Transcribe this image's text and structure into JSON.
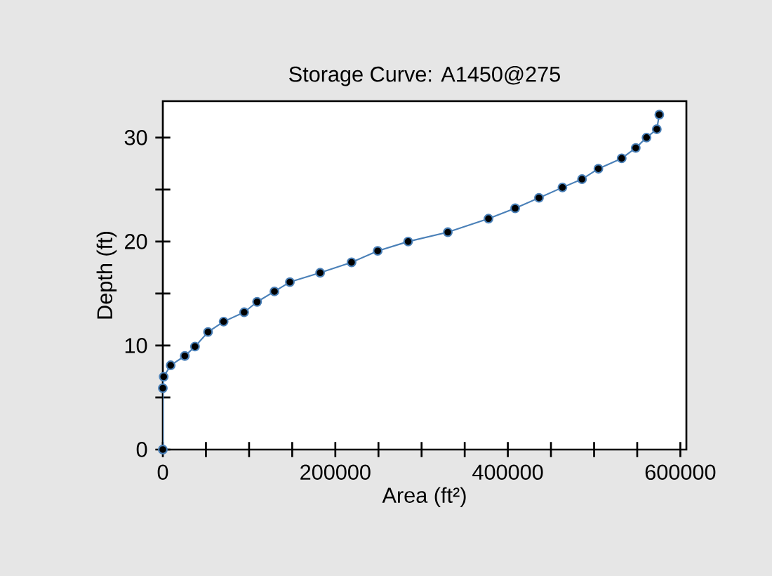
{
  "chart_data": {
    "type": "line",
    "title": "Storage Curve: A1450@275",
    "xlabel": "Area (ft²)",
    "ylabel": "Depth (ft)",
    "series": [
      {
        "color": "#4a80b8",
        "x": [
          0,
          0,
          1000,
          9100,
          25500,
          37300,
          52400,
          70500,
          94300,
          109300,
          129400,
          147300,
          182400,
          218800,
          249100,
          284400,
          330400,
          377600,
          408500,
          436100,
          463300,
          486000,
          505000,
          532000,
          548300,
          560800,
          572700,
          575600
        ],
        "values": [
          0,
          5.9,
          7.0,
          8.1,
          9.0,
          9.9,
          11.3,
          12.3,
          13.2,
          14.2,
          15.2,
          16.1,
          17.0,
          18.0,
          19.1,
          20.0,
          20.9,
          22.2,
          23.2,
          24.2,
          25.2,
          26.0,
          27.0,
          28.0,
          29.0,
          30.0,
          30.8,
          32.2
        ]
      }
    ],
    "xlim": [
      0,
      607000
    ],
    "ylim": [
      0,
      33.5
    ],
    "xticks": [
      0,
      {
        "value": 50000,
        "label": null
      },
      {
        "value": 100000,
        "label": null
      },
      {
        "value": 150000,
        "label": null
      },
      200000,
      {
        "value": 250000,
        "label": null
      },
      {
        "value": 300000,
        "label": null
      },
      {
        "value": 350000,
        "label": null
      },
      400000,
      {
        "value": 450000,
        "label": null
      },
      {
        "value": 500000,
        "label": null
      },
      {
        "value": 550000,
        "label": null
      },
      600000
    ],
    "yticks": [
      0,
      {
        "value": 5,
        "label": null
      },
      10,
      {
        "value": 15,
        "label": null
      },
      20,
      {
        "value": 25,
        "label": null
      },
      30
    ],
    "grid": false,
    "marker": "circle",
    "line_style": "solid"
  }
}
